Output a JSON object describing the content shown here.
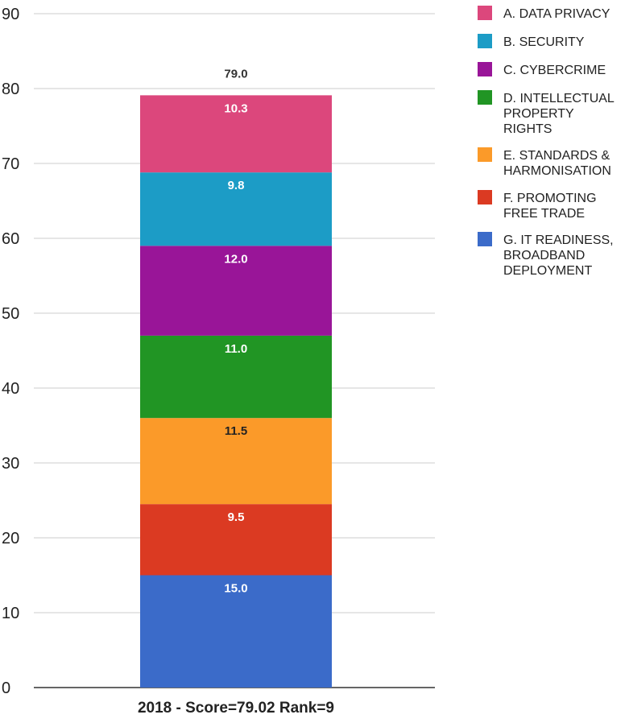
{
  "chart_data": {
    "type": "bar",
    "stacked": true,
    "categories": [
      "2018 - Score=79.02 Rank=9"
    ],
    "series": [
      {
        "name": "G. IT READINESS, BROADBAND DEPLOYMENT",
        "values": [
          15.0
        ],
        "color": "#3b6bc9",
        "label_color": "#ffffff"
      },
      {
        "name": "F. PROMOTING FREE TRADE",
        "values": [
          9.5
        ],
        "color": "#db3a22",
        "label_color": "#ffffff"
      },
      {
        "name": "E. STANDARDS & HARMONISATION",
        "values": [
          11.5
        ],
        "color": "#fb9a29",
        "label_color": "#222222"
      },
      {
        "name": "D. INTELLECTUAL PROPERTY RIGHTS",
        "values": [
          11.0
        ],
        "color": "#219524",
        "label_color": "#ffffff"
      },
      {
        "name": "C. CYBERCRIME",
        "values": [
          12.0
        ],
        "color": "#991598",
        "label_color": "#ffffff"
      },
      {
        "name": "B. SECURITY",
        "values": [
          9.8
        ],
        "color": "#1c9cc6",
        "label_color": "#ffffff"
      },
      {
        "name": "A. DATA PRIVACY",
        "values": [
          10.3
        ],
        "color": "#dc477c",
        "label_color": "#ffffff"
      }
    ],
    "value_labels": [
      "15.0",
      "9.5",
      "11.5",
      "11.0",
      "12.0",
      "9.8",
      "10.3"
    ],
    "total_labels": [
      "79.0"
    ],
    "legend_order": [
      "A. DATA PRIVACY",
      "B. SECURITY",
      "C. CYBERCRIME",
      "D. INTELLECTUAL PROPERTY RIGHTS",
      "E. STANDARDS & HARMONISATION",
      "F. PROMOTING FREE TRADE",
      "G. IT READINESS, BROADBAND DEPLOYMENT"
    ],
    "legend_lines": [
      [
        "A. DATA PRIVACY"
      ],
      [
        "B. SECURITY"
      ],
      [
        "C. CYBERCRIME"
      ],
      [
        "D. INTELLECTUAL",
        "PROPERTY",
        "RIGHTS"
      ],
      [
        "E. STANDARDS &",
        "HARMONISATION"
      ],
      [
        "F. PROMOTING",
        "FREE TRADE"
      ],
      [
        "G. IT READINESS,",
        "BROADBAND",
        "DEPLOYMENT"
      ]
    ],
    "legend_placement": "right",
    "title": "",
    "xlabel": "",
    "ylabel": "",
    "ylim": [
      0,
      90
    ],
    "yticks": [
      "0",
      "10",
      "20",
      "30",
      "40",
      "50",
      "60",
      "70",
      "80",
      "90"
    ],
    "grid": true
  }
}
